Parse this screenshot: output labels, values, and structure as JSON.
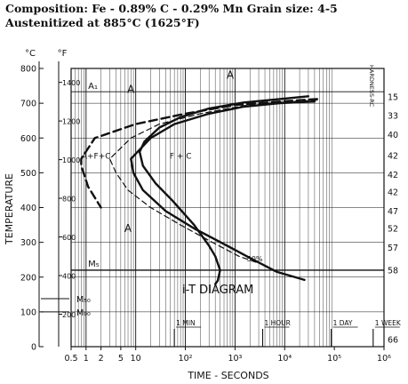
{
  "header": {
    "line1": "Composition: Fe - 0.89% C - 0.29% Mn Grain size: 4-5",
    "line2": "Austenitized at 885°C (1625°F)"
  },
  "chart_data": {
    "type": "line",
    "title": "i-T DIAGRAM",
    "xlabel": "TIME - SECONDS",
    "ylabel": "TEMPERATURE",
    "x_scale": "log",
    "xlim": [
      0.5,
      1000000
    ],
    "ylim": [
      0,
      800
    ],
    "y_units_left": "°C",
    "y_units_right": "°F",
    "hardness_axis_label": "HARDNESS-RC",
    "x_ticks": [
      {
        "value": 0.5,
        "label": "0.5"
      },
      {
        "value": 1,
        "label": "1"
      },
      {
        "value": 2,
        "label": "2"
      },
      {
        "value": 5,
        "label": "5"
      },
      {
        "value": 10,
        "label": "10"
      },
      {
        "value": 100,
        "label": "10²"
      },
      {
        "value": 1000,
        "label": "10³"
      },
      {
        "value": 10000,
        "label": "10⁴"
      },
      {
        "value": 100000,
        "label": "10⁵"
      },
      {
        "value": 1000000,
        "label": "10⁶"
      }
    ],
    "y_ticks_c": [
      0,
      100,
      200,
      300,
      400,
      500,
      600,
      700,
      800
    ],
    "y_ticks_f": [
      {
        "c": 93.3,
        "label": "200"
      },
      {
        "c": 204.4,
        "label": "400"
      },
      {
        "c": 315.6,
        "label": "600"
      },
      {
        "c": 426.7,
        "label": "800"
      },
      {
        "c": 537.8,
        "label": "1000"
      },
      {
        "c": 648.9,
        "label": "1200"
      },
      {
        "c": 760,
        "label": "1400"
      }
    ],
    "hardness": [
      {
        "c": 718,
        "label": "15"
      },
      {
        "c": 665,
        "label": "33"
      },
      {
        "c": 610,
        "label": "40"
      },
      {
        "c": 550,
        "label": "42"
      },
      {
        "c": 495,
        "label": "42"
      },
      {
        "c": 445,
        "label": "42"
      },
      {
        "c": 390,
        "label": "47"
      },
      {
        "c": 340,
        "label": "52"
      },
      {
        "c": 285,
        "label": "57"
      },
      {
        "c": 220,
        "label": "58"
      },
      {
        "c": 20,
        "label": "66"
      }
    ],
    "time_marks": [
      {
        "t": 60,
        "label": "1 MIN"
      },
      {
        "t": 3600,
        "label": "1 HOUR"
      },
      {
        "t": 86400,
        "label": "1 DAY"
      },
      {
        "t": 604800,
        "label": "1 WEEK"
      }
    ],
    "region_labels": [
      {
        "text": "A",
        "t": 800,
        "c": 770
      },
      {
        "text": "A",
        "t": 8,
        "c": 730
      },
      {
        "text": "A+F+C",
        "t": 1.6,
        "c": 540
      },
      {
        "text": "F + C",
        "t": 80,
        "c": 540
      },
      {
        "text": "A",
        "t": 7,
        "c": 330
      },
      {
        "text": "50%",
        "t": 2500,
        "c": 245
      }
    ],
    "temperature_lines": [
      {
        "name": "As",
        "label": "A₁",
        "c": 733,
        "dashed": false
      },
      {
        "name": "Ms",
        "label": "M₅",
        "c": 220,
        "dashed": false
      },
      {
        "name": "M50",
        "label": "M₅₀",
        "c": 138,
        "dashed": false
      },
      {
        "name": "M90",
        "label": "M₉₀",
        "c": 100,
        "dashed": false
      }
    ],
    "series": [
      {
        "key": "start",
        "style": "solid",
        "points": [
          [
            40000,
            705
          ],
          [
            8000,
            700
          ],
          [
            1500,
            690
          ],
          [
            300,
            670
          ],
          [
            60,
            640
          ],
          [
            20,
            600
          ],
          [
            8,
            540
          ],
          [
            9,
            500
          ],
          [
            14,
            450
          ],
          [
            40,
            390
          ],
          [
            150,
            340
          ],
          [
            600,
            295
          ],
          [
            2000,
            255
          ],
          [
            7000,
            215
          ],
          [
            25000,
            192
          ]
        ]
      },
      {
        "key": "start_ext",
        "style": "dashed",
        "points": [
          [
            45000,
            712
          ],
          [
            8000,
            705
          ],
          [
            1000,
            695
          ],
          [
            100,
            670
          ],
          [
            10,
            640
          ],
          [
            1.5,
            600
          ],
          [
            0.8,
            540
          ],
          [
            0.8,
            520
          ],
          [
            1.1,
            460
          ],
          [
            2,
            400
          ]
        ]
      },
      {
        "key": "half",
        "style": "dashed",
        "points": [
          [
            45000,
            709
          ],
          [
            8000,
            703
          ],
          [
            1500,
            693
          ],
          [
            200,
            670
          ],
          [
            30,
            640
          ],
          [
            8,
            600
          ],
          [
            3,
            540
          ],
          [
            4,
            500
          ],
          [
            7,
            450
          ],
          [
            20,
            400
          ],
          [
            80,
            350
          ],
          [
            350,
            300
          ],
          [
            1200,
            260
          ],
          [
            3000,
            240
          ]
        ]
      },
      {
        "key": "finish",
        "style": "solid",
        "points": [
          [
            30000,
            720
          ],
          [
            8000,
            712
          ],
          [
            1500,
            702
          ],
          [
            300,
            685
          ],
          [
            80,
            660
          ],
          [
            30,
            630
          ],
          [
            15,
            590
          ],
          [
            12,
            560
          ],
          [
            14,
            520
          ],
          [
            25,
            470
          ],
          [
            55,
            420
          ],
          [
            150,
            350
          ],
          [
            300,
            290
          ],
          [
            400,
            260
          ],
          [
            500,
            220
          ],
          [
            450,
            190
          ],
          [
            400,
            180
          ]
        ]
      }
    ]
  }
}
